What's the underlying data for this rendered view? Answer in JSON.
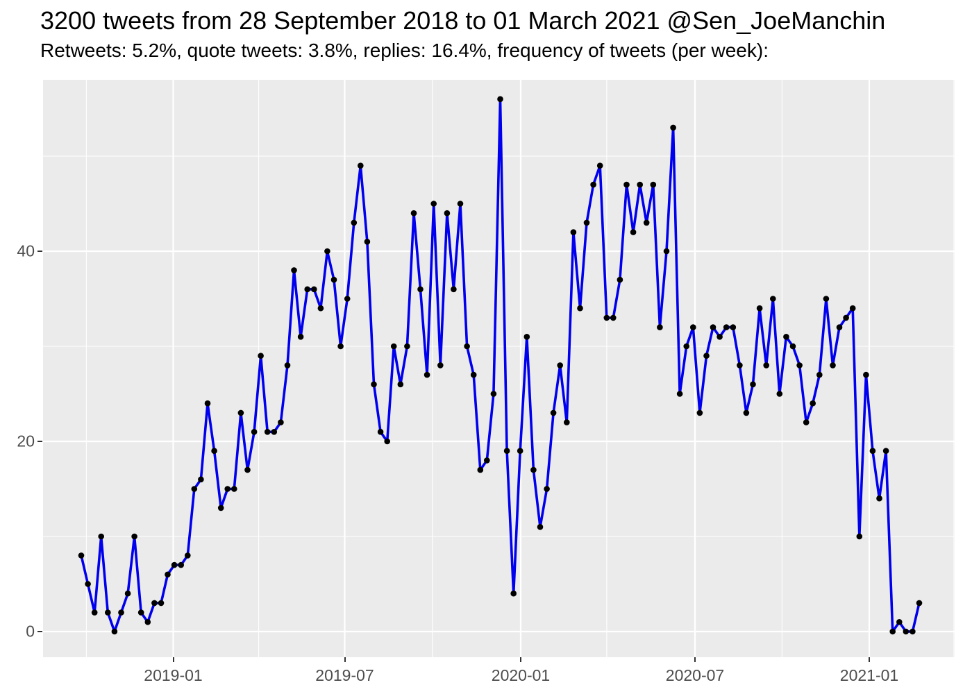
{
  "header": {
    "title": "3200 tweets from 28 September 2018 to 01 March 2021 @Sen_JoeManchin",
    "subtitle": "Retweets: 5.2%, quote tweets: 3.8%, replies: 16.4%, frequency of tweets (per week):"
  },
  "chart_data": {
    "type": "line",
    "title": "3200 tweets from 28 September 2018 to 01 March 2021 @Sen_JoeManchin",
    "subtitle": "Retweets: 5.2%, quote tweets: 3.8%, replies: 16.4%, frequency of tweets (per week):",
    "series_name": "tweets per week",
    "x_start_date": "2018-09-24",
    "x_end_date": "2021-02-22",
    "x_interval_days": 7,
    "n_points": 127,
    "values": [
      8,
      5,
      2,
      10,
      2,
      0,
      2,
      4,
      10,
      2,
      1,
      3,
      3,
      6,
      7,
      7,
      8,
      15,
      16,
      24,
      19,
      13,
      15,
      15,
      23,
      17,
      21,
      29,
      21,
      21,
      22,
      28,
      38,
      31,
      36,
      36,
      34,
      40,
      37,
      30,
      35,
      43,
      49,
      41,
      26,
      21,
      20,
      30,
      26,
      30,
      44,
      36,
      27,
      45,
      28,
      44,
      36,
      45,
      30,
      27,
      17,
      18,
      25,
      56,
      19,
      4,
      19,
      31,
      17,
      11,
      15,
      23,
      28,
      22,
      42,
      34,
      43,
      47,
      49,
      33,
      33,
      37,
      47,
      42,
      47,
      43,
      47,
      32,
      40,
      53,
      25,
      30,
      32,
      23,
      29,
      32,
      31,
      32,
      32,
      28,
      23,
      26,
      34,
      28,
      35,
      25,
      31,
      30,
      28,
      22,
      24,
      27,
      35,
      28,
      32,
      33,
      34,
      10,
      27,
      19,
      14,
      19,
      0,
      1,
      0,
      0,
      3
    ],
    "xlabel": "",
    "ylabel": "",
    "x_tick_labels": [
      "2019-01",
      "2019-07",
      "2020-01",
      "2020-07",
      "2021-01"
    ],
    "y_tick_labels": [
      "0",
      "20",
      "40"
    ],
    "y_tick_values": [
      0,
      20,
      40
    ],
    "y_minor_values": [
      10,
      30,
      50
    ],
    "ylim": [
      -2.7,
      58.0
    ],
    "grid": "white major and minor gridlines on gray panel",
    "legend": "none",
    "colors": {
      "line": "#0000EE",
      "point": "#000000",
      "panel_background": "#EBEBEB",
      "gridline": "#FFFFFF",
      "axis_text": "#4D4D4D",
      "tick_mark": "#333333",
      "title_text": "#000000"
    }
  }
}
